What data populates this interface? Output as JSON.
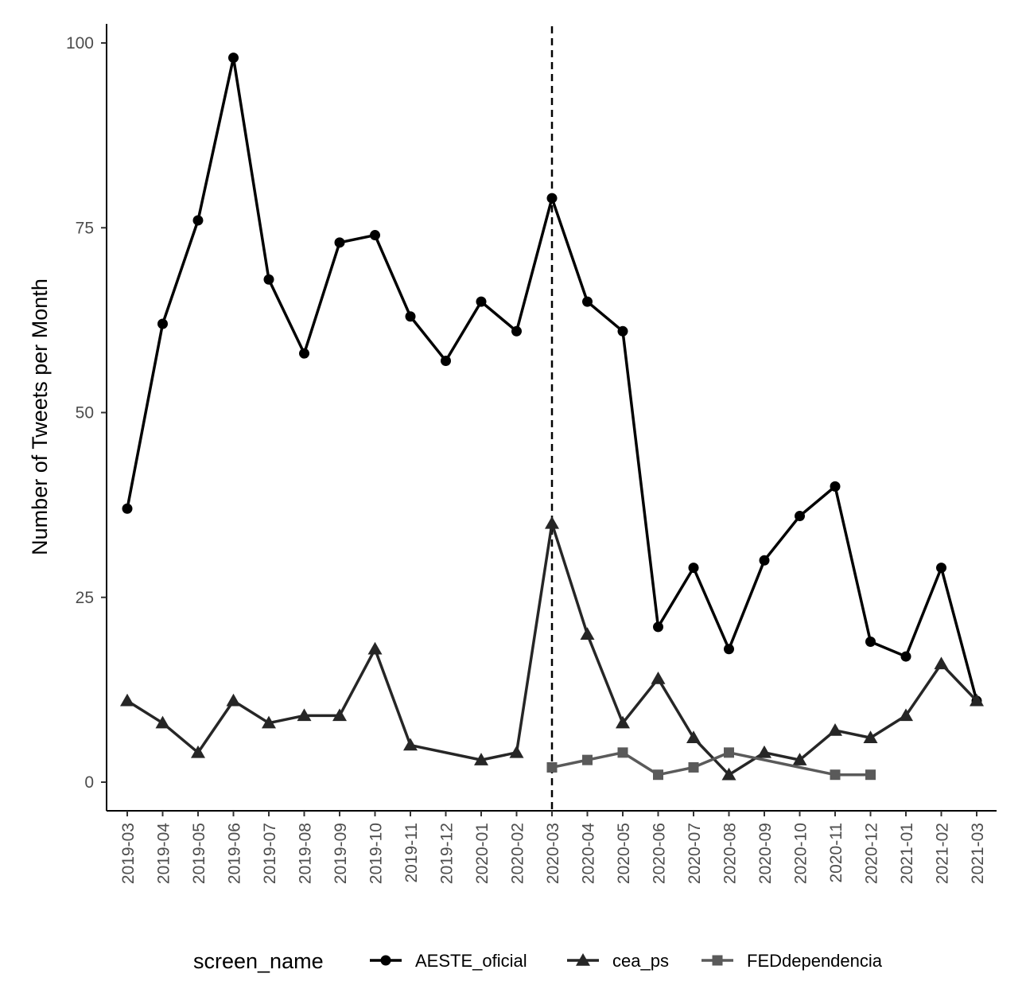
{
  "chart_data": {
    "type": "line",
    "xlabel": "",
    "ylabel": "Number of Tweets per Month",
    "ylim": [
      -3.5,
      102.5
    ],
    "yticks": [
      0,
      25,
      50,
      75,
      100
    ],
    "categories": [
      "2019-03",
      "2019-04",
      "2019-05",
      "2019-06",
      "2019-07",
      "2019-08",
      "2019-09",
      "2019-10",
      "2019-11",
      "2019-12",
      "2020-01",
      "2020-02",
      "2020-03",
      "2020-04",
      "2020-05",
      "2020-06",
      "2020-07",
      "2020-08",
      "2020-09",
      "2020-10",
      "2020-11",
      "2020-12",
      "2021-01",
      "2021-02",
      "2021-03"
    ],
    "vline_at": "2020-03",
    "legend": {
      "title": "screen_name",
      "position": "bottom"
    },
    "grid": false,
    "series": [
      {
        "name": "AESTE_oficial",
        "marker": "circle",
        "color": "#000000",
        "values": [
          37,
          62,
          76,
          98,
          68,
          58,
          73,
          74,
          63,
          57,
          65,
          61,
          79,
          65,
          61,
          21,
          29,
          18,
          30,
          36,
          40,
          19,
          17,
          29,
          11
        ]
      },
      {
        "name": "cea_ps",
        "marker": "triangle",
        "color": "#262626",
        "values": [
          11,
          8,
          4,
          11,
          8,
          9,
          9,
          18,
          5,
          null,
          3,
          4,
          35,
          20,
          8,
          14,
          6,
          1,
          4,
          3,
          7,
          6,
          9,
          16,
          11
        ]
      },
      {
        "name": "FEDdependencia",
        "marker": "square",
        "color": "#5a5a5a",
        "values": [
          null,
          null,
          null,
          null,
          null,
          null,
          null,
          null,
          null,
          null,
          null,
          null,
          2,
          3,
          4,
          1,
          2,
          4,
          null,
          null,
          1,
          1,
          null,
          null,
          null
        ]
      }
    ]
  }
}
